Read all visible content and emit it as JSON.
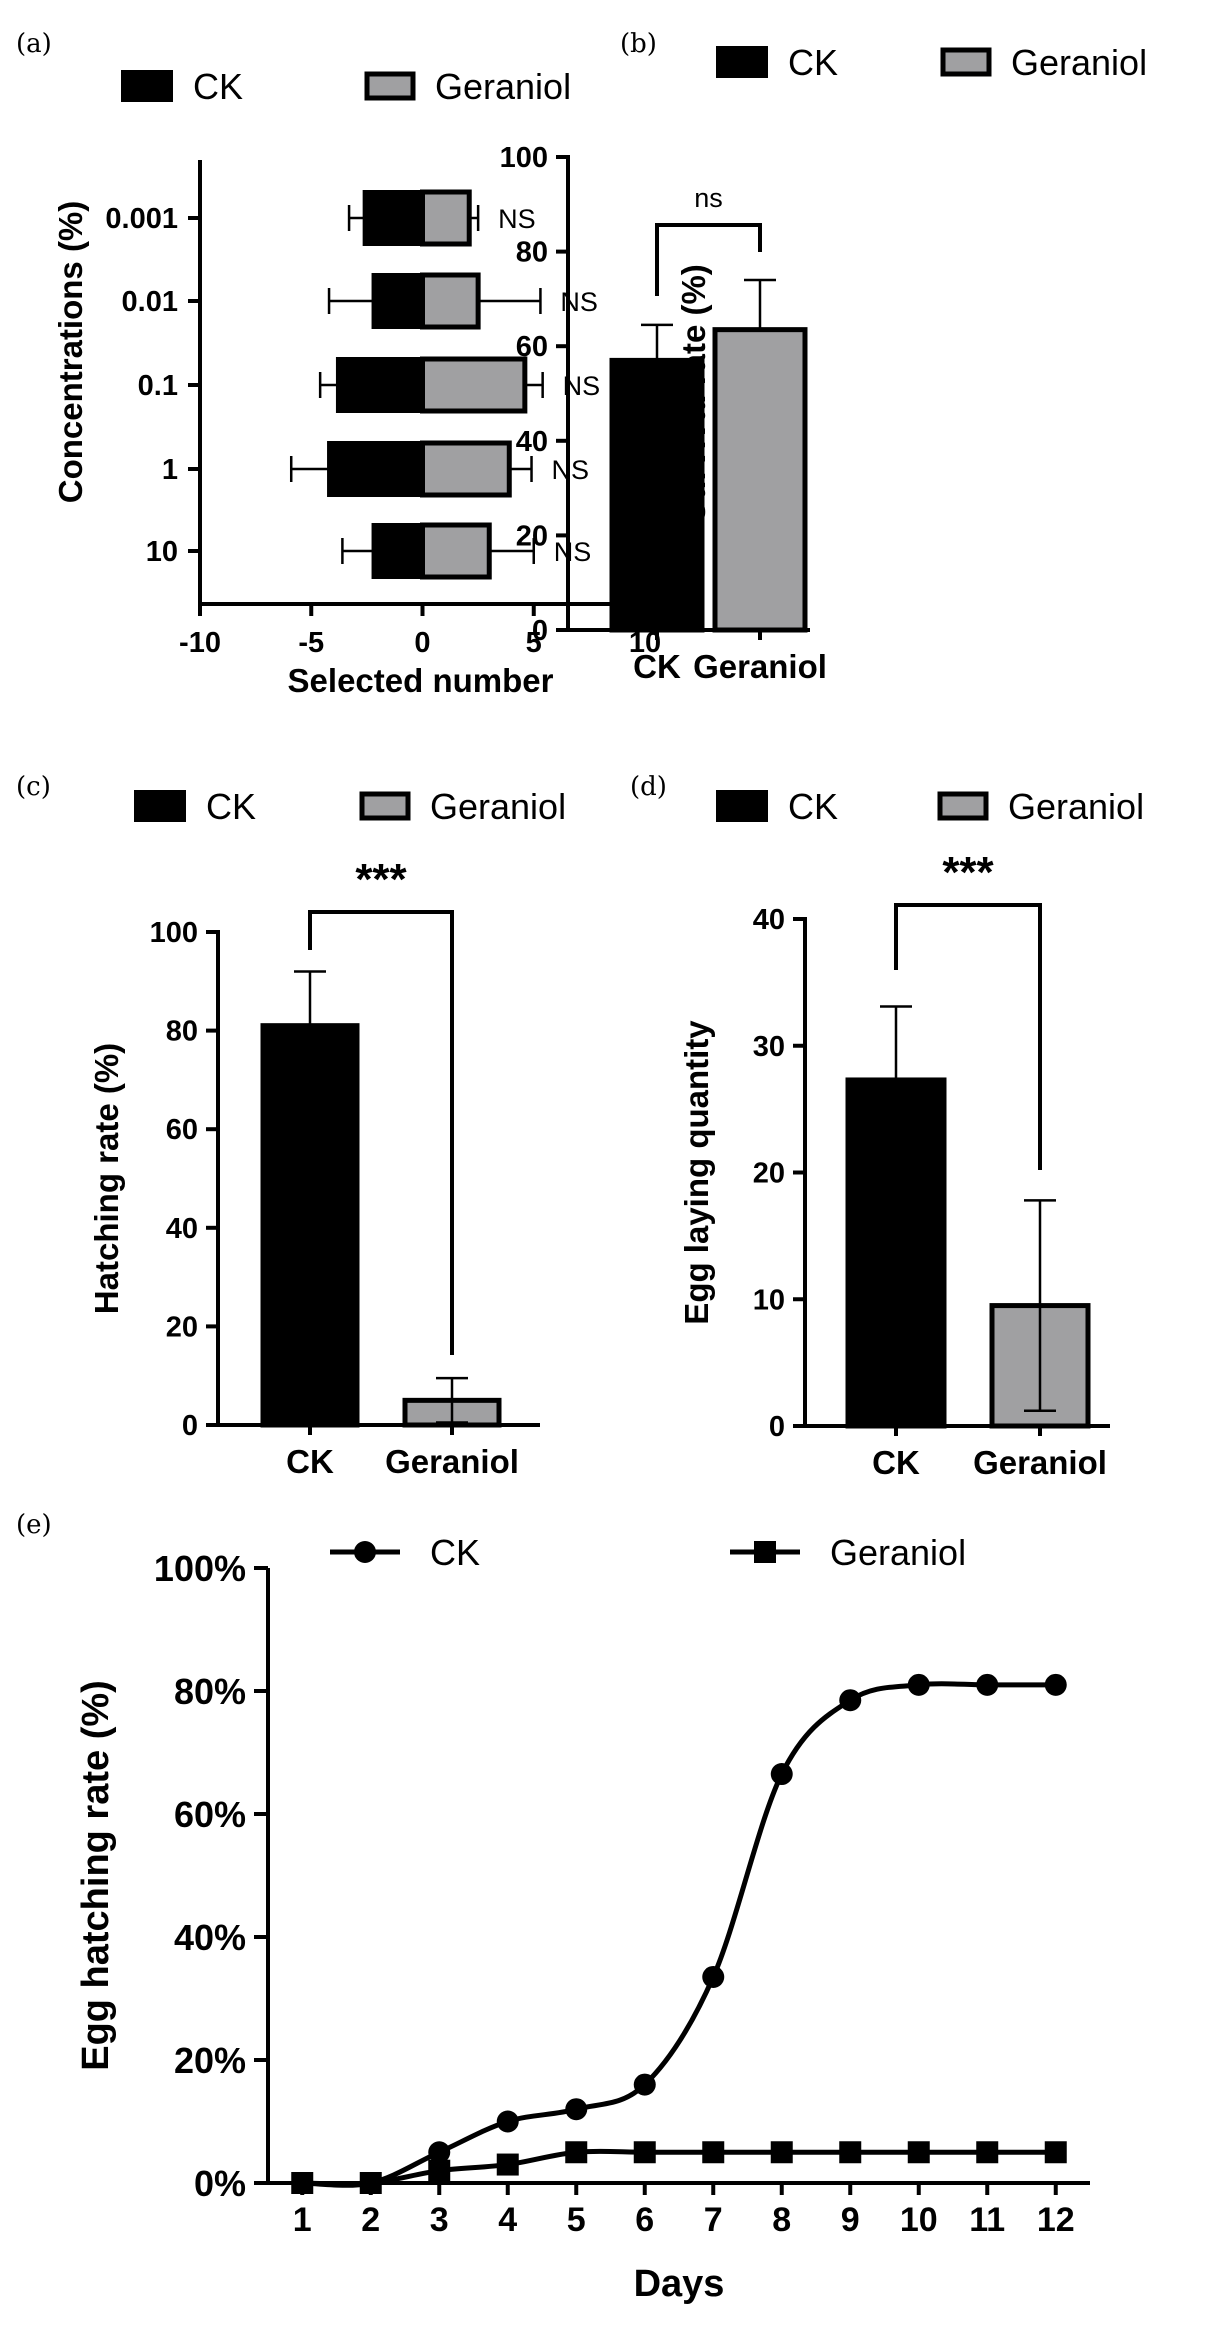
{
  "chart_data": [
    {
      "panel": "(a)",
      "type": "bar",
      "orientation": "horizontal",
      "legend": [
        "CK",
        "Geraniol"
      ],
      "colors": {
        "CK": "#000000",
        "Geraniol": "#a0a0a2"
      },
      "xlabel": "Selected number",
      "ylabel": "Concentrations (%)",
      "xlim": [
        -10,
        10
      ],
      "xticks": [
        "-10",
        "-5",
        "0",
        "5",
        "10"
      ],
      "categories": [
        "0.001",
        "0.01",
        "0.1",
        "1",
        "10"
      ],
      "series": [
        {
          "name": "CK",
          "values": [
            -2.6,
            -2.2,
            -3.8,
            -4.2,
            -2.2
          ],
          "errors": [
            0.7,
            2.0,
            0.8,
            1.7,
            1.4
          ]
        },
        {
          "name": "Geraniol",
          "values": [
            2.1,
            2.5,
            4.6,
            3.9,
            3.0
          ],
          "errors": [
            0.4,
            2.8,
            0.8,
            1.0,
            2.0
          ]
        }
      ],
      "annotations": [
        "NS",
        "NS",
        "NS",
        "NS",
        "NS"
      ]
    },
    {
      "panel": "(b)",
      "type": "bar",
      "legend": [
        "CK",
        "Geraniol"
      ],
      "colors": {
        "CK": "#000000",
        "Geraniol": "#a0a0a2"
      },
      "categories": [
        "CK",
        "Geraniol"
      ],
      "values": [
        57,
        63.5
      ],
      "errors": [
        7.5,
        10.5
      ],
      "ylabel": "Survival rate (%)",
      "ylim": [
        0,
        100
      ],
      "yticks": [
        "0",
        "20",
        "40",
        "60",
        "80",
        "100"
      ],
      "significance": "ns"
    },
    {
      "panel": "(c)",
      "type": "bar",
      "legend": [
        "CK",
        "Geraniol"
      ],
      "colors": {
        "CK": "#000000",
        "Geraniol": "#a0a0a2"
      },
      "categories": [
        "CK",
        "Geraniol"
      ],
      "values": [
        81,
        5
      ],
      "errors": [
        11,
        4.5
      ],
      "ylabel": "Hatching rate (%)",
      "ylim": [
        0,
        100
      ],
      "yticks": [
        "0",
        "20",
        "40",
        "60",
        "80",
        "100"
      ],
      "significance": "***"
    },
    {
      "panel": "(d)",
      "type": "bar",
      "legend": [
        "CK",
        "Geraniol"
      ],
      "colors": {
        "CK": "#000000",
        "Geraniol": "#a0a0a2"
      },
      "categories": [
        "CK",
        "Geraniol"
      ],
      "values": [
        27.3,
        9.5
      ],
      "errors": [
        5.8,
        8.3
      ],
      "ylabel": "Egg laying quantity",
      "ylim": [
        0,
        40
      ],
      "yticks": [
        "0",
        "10",
        "20",
        "30",
        "40"
      ],
      "significance": "***"
    },
    {
      "panel": "(e)",
      "type": "line",
      "legend": [
        "CK",
        "Geraniol"
      ],
      "x": [
        1,
        2,
        3,
        4,
        5,
        6,
        7,
        8,
        9,
        10,
        11,
        12
      ],
      "xticks": [
        "1",
        "2",
        "3",
        "4",
        "5",
        "6",
        "7",
        "8",
        "9",
        "10",
        "11",
        "12"
      ],
      "series": [
        {
          "name": "CK",
          "marker": "circle",
          "values": [
            0,
            0,
            5,
            10,
            12,
            16,
            33.5,
            66.5,
            78.5,
            81,
            81,
            81
          ]
        },
        {
          "name": "Geraniol",
          "marker": "square",
          "values": [
            0,
            0,
            2,
            3,
            5,
            5,
            5,
            5,
            5,
            5,
            5,
            5
          ]
        }
      ],
      "xlabel": "Days",
      "ylabel": "Egg hatching rate (%)",
      "ylim": [
        0,
        100
      ],
      "yticks": [
        "0%",
        "20%",
        "40%",
        "60%",
        "80%",
        "100%"
      ]
    }
  ]
}
